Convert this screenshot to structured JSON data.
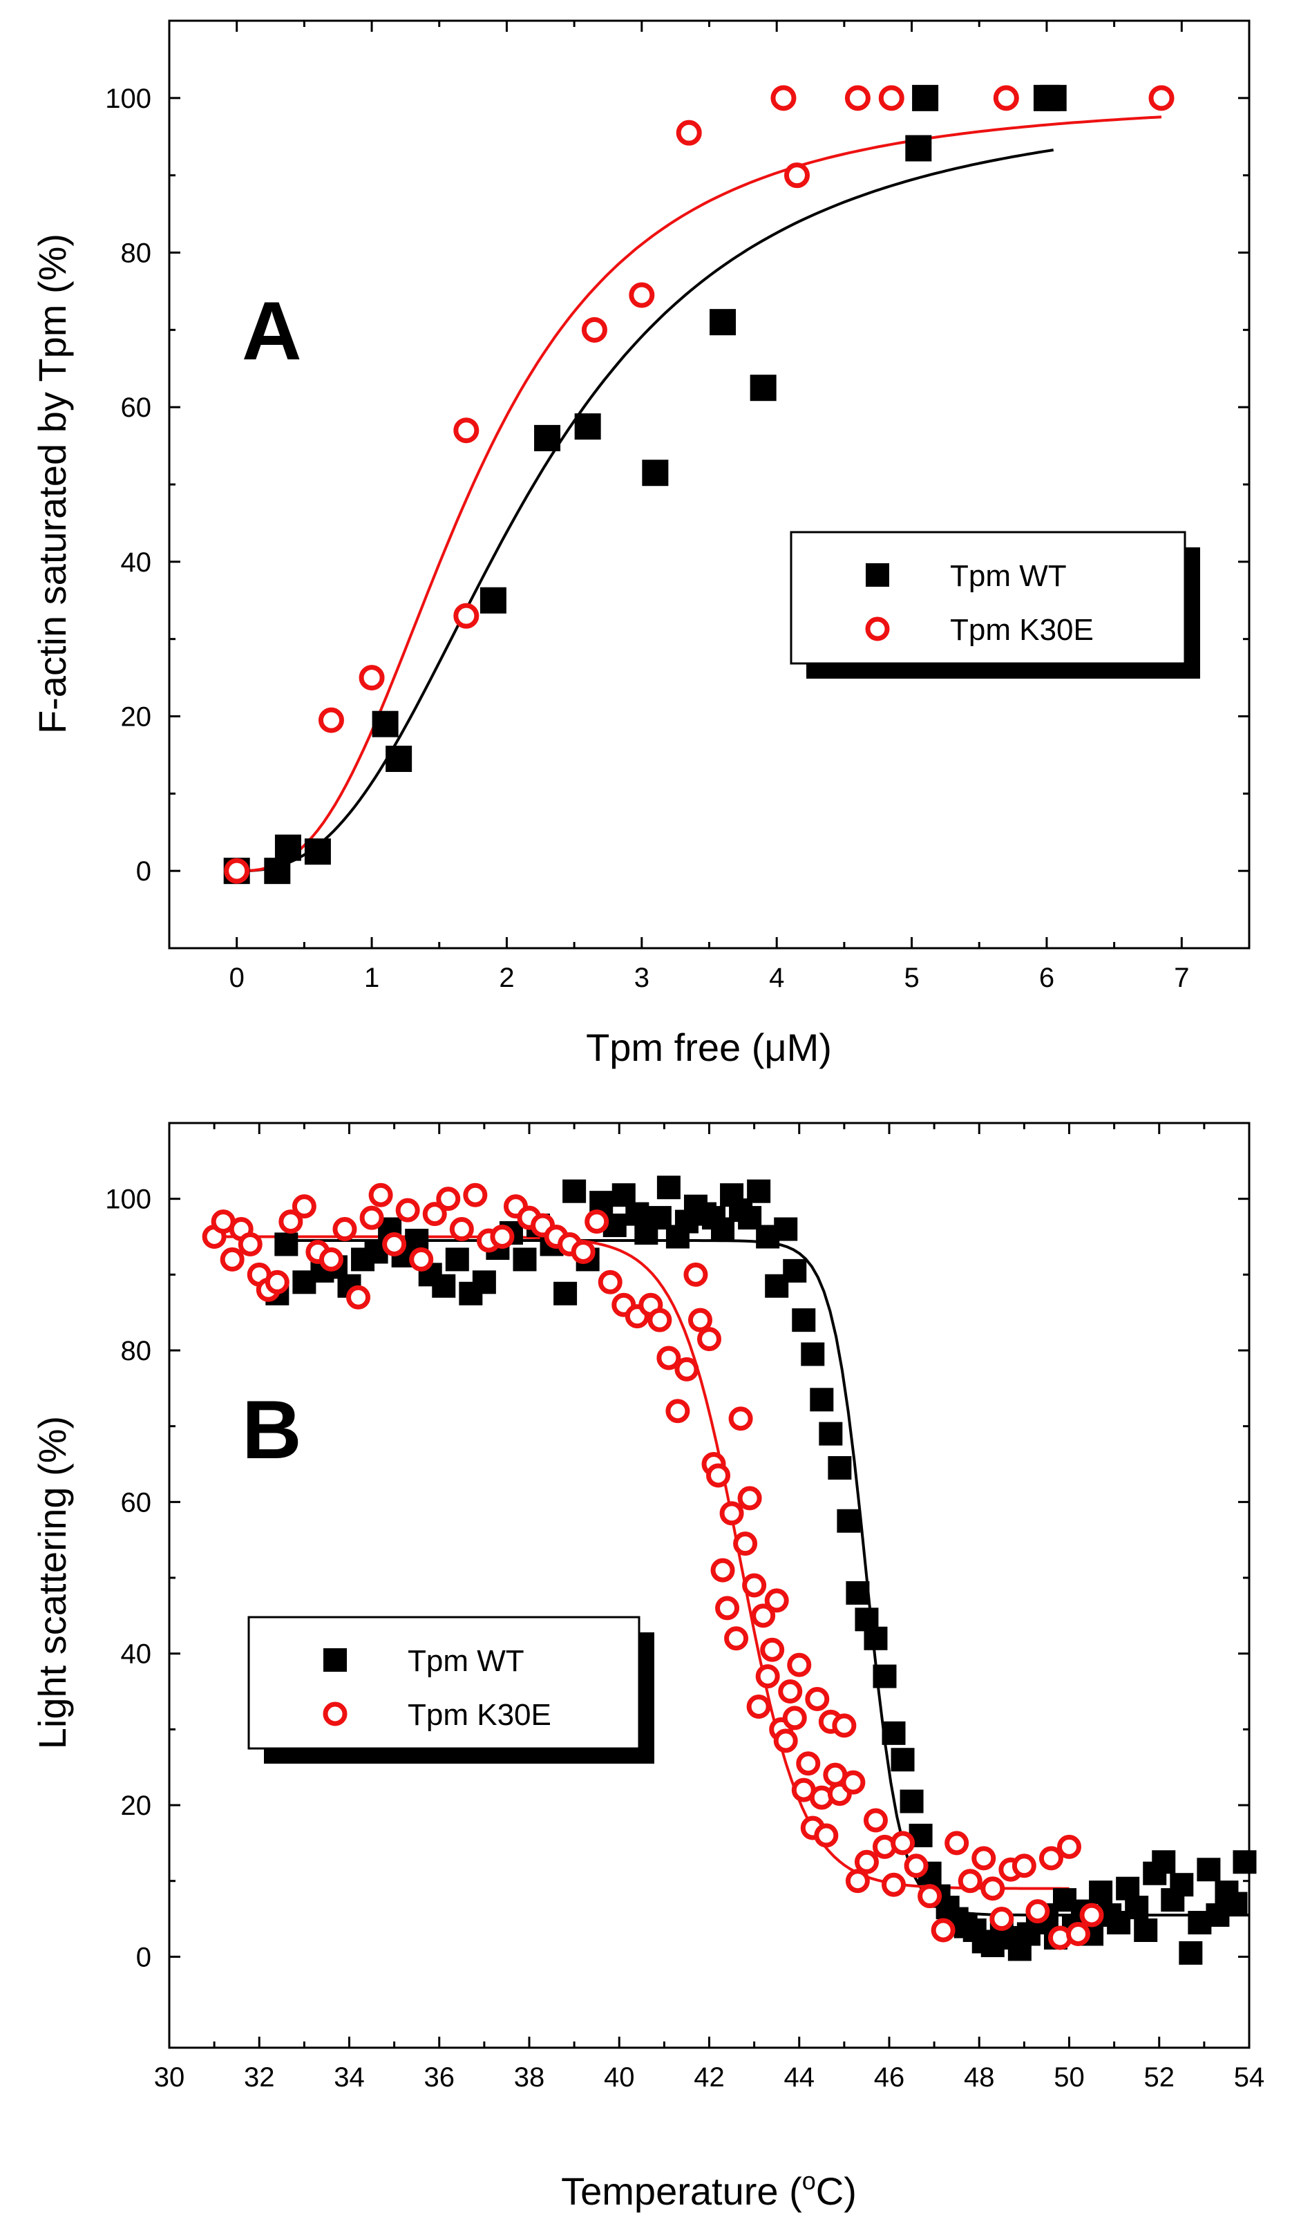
{
  "chart_data": [
    {
      "type": "scatter",
      "panel_label": "A",
      "xlabel": "Tpm free (μM)",
      "ylabel": "F-actin saturated by Tpm  (%)",
      "xlim": [
        -0.5,
        7.5
      ],
      "ylim": [
        -10,
        110
      ],
      "xticks": [
        0,
        1,
        2,
        3,
        4,
        5,
        6,
        7
      ],
      "yticks": [
        0,
        20,
        40,
        60,
        80,
        100
      ],
      "legend_position": "middle-right",
      "series": [
        {
          "name": "Tpm WT",
          "marker": "filled-square",
          "color": "#000000",
          "points": [
            [
              0.0,
              0.0
            ],
            [
              0.3,
              0.0
            ],
            [
              0.38,
              3.0
            ],
            [
              0.6,
              2.5
            ],
            [
              1.1,
              19.0
            ],
            [
              1.2,
              14.5
            ],
            [
              1.9,
              35.0
            ],
            [
              2.3,
              56.0
            ],
            [
              2.6,
              57.5
            ],
            [
              3.1,
              51.5
            ],
            [
              3.6,
              71.0
            ],
            [
              3.9,
              62.5
            ],
            [
              5.05,
              93.5
            ],
            [
              5.1,
              100.0
            ],
            [
              6.0,
              100.0
            ],
            [
              6.05,
              100.0
            ]
          ],
          "fit": {
            "model": "hill",
            "k": 2.2,
            "n": 2.6,
            "vmax": 100,
            "x_range": [
              0,
              6.05
            ]
          }
        },
        {
          "name": "Tpm K30E",
          "marker": "open-circle",
          "color": "#ee1111",
          "points": [
            [
              0.0,
              0.0
            ],
            [
              0.7,
              19.5
            ],
            [
              1.0,
              25.0
            ],
            [
              1.7,
              33.0
            ],
            [
              1.7,
              57.0
            ],
            [
              2.65,
              70.0
            ],
            [
              3.0,
              74.5
            ],
            [
              3.35,
              95.5
            ],
            [
              4.05,
              100.0
            ],
            [
              4.15,
              90.0
            ],
            [
              4.6,
              100.0
            ],
            [
              4.85,
              100.0
            ],
            [
              5.7,
              100.0
            ],
            [
              6.85,
              100.0
            ]
          ],
          "fit": {
            "model": "hill",
            "k": 1.75,
            "n": 2.7,
            "vmax": 100,
            "x_range": [
              0,
              6.85
            ]
          }
        }
      ]
    },
    {
      "type": "scatter",
      "panel_label": "B",
      "xlabel": "Temperature (",
      "xlabel_superscript": "o",
      "xlabel_tail": "C)",
      "ylabel": "Light scattering (%)",
      "xlim": [
        30,
        54
      ],
      "ylim": [
        -12,
        110
      ],
      "xticks": [
        30,
        32,
        34,
        36,
        38,
        40,
        42,
        44,
        46,
        48,
        50,
        52,
        54
      ],
      "yticks": [
        0,
        20,
        40,
        60,
        80,
        100
      ],
      "legend_position": "middle-left",
      "series": [
        {
          "name": "Tpm WT",
          "marker": "filled-square",
          "color": "#000000",
          "points": [
            [
              32.4,
              87.5
            ],
            [
              32.6,
              94.0
            ],
            [
              33.0,
              89.0
            ],
            [
              33.4,
              90.5
            ],
            [
              33.7,
              91.0
            ],
            [
              34.0,
              88.5
            ],
            [
              34.3,
              92.0
            ],
            [
              34.6,
              93.0
            ],
            [
              34.9,
              96.0
            ],
            [
              35.2,
              92.5
            ],
            [
              35.5,
              94.5
            ],
            [
              35.8,
              90.0
            ],
            [
              36.1,
              88.5
            ],
            [
              36.4,
              92.0
            ],
            [
              36.7,
              87.5
            ],
            [
              37.0,
              89.0
            ],
            [
              37.3,
              93.5
            ],
            [
              37.6,
              95.5
            ],
            [
              37.9,
              92.0
            ],
            [
              38.2,
              96.5
            ],
            [
              38.5,
              94.0
            ],
            [
              38.8,
              87.5
            ],
            [
              39.0,
              101.0
            ],
            [
              39.3,
              92.0
            ],
            [
              39.6,
              99.5
            ],
            [
              39.9,
              96.5
            ],
            [
              40.1,
              100.5
            ],
            [
              40.4,
              98.0
            ],
            [
              40.6,
              95.5
            ],
            [
              40.9,
              97.5
            ],
            [
              41.1,
              101.5
            ],
            [
              41.3,
              95.0
            ],
            [
              41.5,
              97.0
            ],
            [
              41.7,
              99.0
            ],
            [
              41.9,
              98.0
            ],
            [
              42.1,
              97.5
            ],
            [
              42.3,
              96.0
            ],
            [
              42.5,
              100.5
            ],
            [
              42.7,
              98.5
            ],
            [
              42.9,
              97.5
            ],
            [
              43.1,
              101.0
            ],
            [
              43.3,
              95.0
            ],
            [
              43.5,
              88.5
            ],
            [
              43.7,
              96.0
            ],
            [
              43.9,
              90.5
            ],
            [
              44.1,
              84.0
            ],
            [
              44.3,
              79.5
            ],
            [
              44.5,
              73.5
            ],
            [
              44.7,
              69.0
            ],
            [
              44.9,
              64.5
            ],
            [
              45.1,
              57.5
            ],
            [
              45.3,
              48.0
            ],
            [
              45.5,
              44.5
            ],
            [
              45.7,
              42.0
            ],
            [
              45.9,
              37.0
            ],
            [
              46.1,
              29.5
            ],
            [
              46.3,
              26.0
            ],
            [
              46.5,
              20.5
            ],
            [
              46.7,
              16.0
            ],
            [
              46.9,
              11.0
            ],
            [
              47.1,
              8.0
            ],
            [
              47.3,
              6.5
            ],
            [
              47.5,
              5.0
            ],
            [
              47.7,
              4.0
            ],
            [
              47.9,
              3.5
            ],
            [
              48.1,
              2.0
            ],
            [
              48.3,
              1.5
            ],
            [
              48.5,
              3.5
            ],
            [
              48.7,
              2.5
            ],
            [
              48.9,
              1.0
            ],
            [
              49.1,
              3.0
            ],
            [
              49.3,
              4.5
            ],
            [
              49.5,
              5.5
            ],
            [
              49.7,
              2.5
            ],
            [
              49.9,
              7.5
            ],
            [
              50.1,
              4.0
            ],
            [
              50.3,
              6.0
            ],
            [
              50.5,
              3.0
            ],
            [
              50.7,
              8.5
            ],
            [
              50.9,
              5.5
            ],
            [
              51.1,
              4.5
            ],
            [
              51.3,
              9.0
            ],
            [
              51.5,
              6.5
            ],
            [
              51.7,
              3.5
            ],
            [
              51.9,
              11.0
            ],
            [
              52.1,
              12.5
            ],
            [
              52.3,
              7.5
            ],
            [
              52.5,
              9.5
            ],
            [
              52.7,
              0.5
            ],
            [
              52.9,
              4.5
            ],
            [
              53.1,
              11.5
            ],
            [
              53.3,
              5.5
            ],
            [
              53.5,
              8.5
            ],
            [
              53.7,
              7.0
            ],
            [
              53.9,
              12.5
            ]
          ],
          "fit": {
            "model": "sigmoid",
            "top": 94.5,
            "bottom": 5.5,
            "tm": 45.5,
            "slope": 0.38,
            "x_range": [
              32.4,
              54
            ]
          }
        },
        {
          "name": "Tpm K30E",
          "marker": "open-circle",
          "color": "#ee1111",
          "points": [
            [
              31.0,
              95.0
            ],
            [
              31.2,
              97.0
            ],
            [
              31.4,
              92.0
            ],
            [
              31.6,
              96.0
            ],
            [
              31.8,
              94.0
            ],
            [
              32.0,
              90.0
            ],
            [
              32.2,
              88.0
            ],
            [
              32.4,
              89.0
            ],
            [
              32.7,
              97.0
            ],
            [
              33.0,
              99.0
            ],
            [
              33.3,
              93.0
            ],
            [
              33.6,
              92.0
            ],
            [
              33.9,
              96.0
            ],
            [
              34.2,
              87.0
            ],
            [
              34.5,
              97.5
            ],
            [
              34.7,
              100.5
            ],
            [
              35.0,
              94.0
            ],
            [
              35.3,
              98.5
            ],
            [
              35.6,
              92.0
            ],
            [
              35.9,
              98.0
            ],
            [
              36.2,
              100.0
            ],
            [
              36.5,
              96.0
            ],
            [
              36.8,
              100.5
            ],
            [
              37.1,
              94.5
            ],
            [
              37.4,
              95.0
            ],
            [
              37.7,
              99.0
            ],
            [
              38.0,
              97.5
            ],
            [
              38.3,
              96.5
            ],
            [
              38.6,
              95.0
            ],
            [
              38.9,
              94.0
            ],
            [
              39.2,
              93.0
            ],
            [
              39.5,
              97.0
            ],
            [
              39.8,
              89.0
            ],
            [
              40.1,
              86.0
            ],
            [
              40.4,
              84.5
            ],
            [
              40.7,
              86.0
            ],
            [
              40.9,
              84.0
            ],
            [
              41.1,
              79.0
            ],
            [
              41.3,
              72.0
            ],
            [
              41.5,
              77.5
            ],
            [
              41.7,
              90.0
            ],
            [
              41.8,
              84.0
            ],
            [
              42.0,
              81.5
            ],
            [
              42.1,
              65.0
            ],
            [
              42.2,
              63.5
            ],
            [
              42.3,
              51.0
            ],
            [
              42.4,
              46.0
            ],
            [
              42.5,
              58.5
            ],
            [
              42.6,
              42.0
            ],
            [
              42.7,
              71.0
            ],
            [
              42.8,
              54.5
            ],
            [
              42.9,
              60.5
            ],
            [
              43.0,
              49.0
            ],
            [
              43.1,
              33.0
            ],
            [
              43.2,
              45.0
            ],
            [
              43.3,
              37.0
            ],
            [
              43.4,
              40.5
            ],
            [
              43.5,
              47.0
            ],
            [
              43.6,
              30.0
            ],
            [
              43.7,
              28.5
            ],
            [
              43.8,
              35.0
            ],
            [
              43.9,
              31.5
            ],
            [
              44.0,
              38.5
            ],
            [
              44.1,
              22.0
            ],
            [
              44.2,
              25.5
            ],
            [
              44.3,
              17.0
            ],
            [
              44.4,
              34.0
            ],
            [
              44.5,
              21.0
            ],
            [
              44.6,
              16.0
            ],
            [
              44.7,
              31.0
            ],
            [
              44.8,
              24.0
            ],
            [
              44.9,
              21.5
            ],
            [
              45.0,
              30.5
            ],
            [
              45.2,
              23.0
            ],
            [
              45.3,
              10.0
            ],
            [
              45.5,
              12.5
            ],
            [
              45.7,
              18.0
            ],
            [
              45.9,
              14.5
            ],
            [
              46.1,
              9.5
            ],
            [
              46.3,
              15.0
            ],
            [
              46.6,
              12.0
            ],
            [
              46.9,
              8.0
            ],
            [
              47.2,
              3.5
            ],
            [
              47.5,
              15.0
            ],
            [
              47.8,
              10.0
            ],
            [
              48.1,
              13.0
            ],
            [
              48.3,
              9.0
            ],
            [
              48.5,
              5.0
            ],
            [
              48.7,
              11.5
            ],
            [
              49.0,
              12.0
            ],
            [
              49.3,
              6.0
            ],
            [
              49.6,
              13.0
            ],
            [
              49.8,
              2.5
            ],
            [
              50.0,
              14.5
            ],
            [
              50.2,
              3.0
            ],
            [
              50.5,
              5.5
            ]
          ],
          "fit": {
            "model": "sigmoid",
            "top": 95.0,
            "bottom": 9.0,
            "tm": 42.7,
            "slope": 0.7,
            "x_range": [
              31.0,
              50.0
            ]
          }
        }
      ]
    }
  ]
}
